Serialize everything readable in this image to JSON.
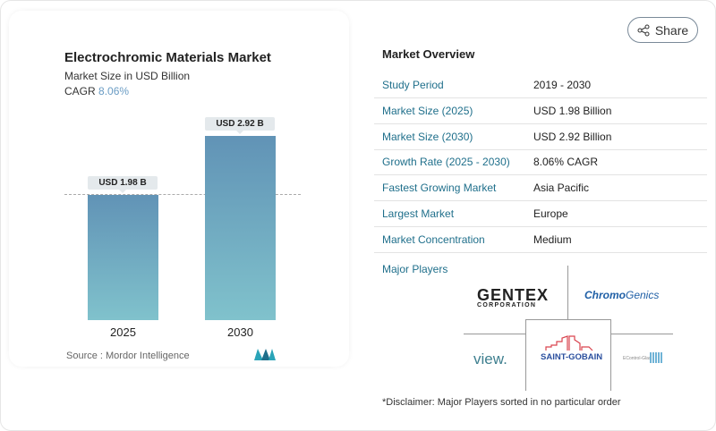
{
  "chart_data": {
    "type": "bar",
    "title": "Electrochromic Materials Market",
    "subtitle": "Market Size in USD Billion",
    "cagr_label": "CAGR",
    "cagr_value": "8.06%",
    "categories": [
      "2025",
      "2030"
    ],
    "values": [
      1.98,
      2.92
    ],
    "data_labels": [
      "USD 1.98 B",
      "USD 2.92 B"
    ],
    "colors": [
      "#6193b6",
      "#80c2cc"
    ],
    "source": "Source :  Mordor Intelligence"
  },
  "share_label": "Share",
  "overview": {
    "title": "Market Overview",
    "rows": [
      {
        "k": "Study Period",
        "v": "2019 - 2030"
      },
      {
        "k": "Market Size (2025)",
        "v": "USD 1.98 Billion"
      },
      {
        "k": "Market Size (2030)",
        "v": "USD 2.92 Billion"
      },
      {
        "k": "Growth Rate (2025 - 2030)",
        "v": "8.06% CAGR"
      },
      {
        "k": "Fastest Growing Market",
        "v": "Asia Pacific"
      },
      {
        "k": "Largest Market",
        "v": "Europe"
      },
      {
        "k": "Market Concentration",
        "v": "Medium"
      }
    ]
  },
  "players": {
    "title": "Major Players",
    "logos": [
      "GENTEX CORPORATION",
      "ChromoGenics",
      "view.",
      "SAINT-GOBAIN",
      "EControl-Glas"
    ]
  },
  "disclaimer": "*Disclaimer: Major Players sorted in no particular order"
}
